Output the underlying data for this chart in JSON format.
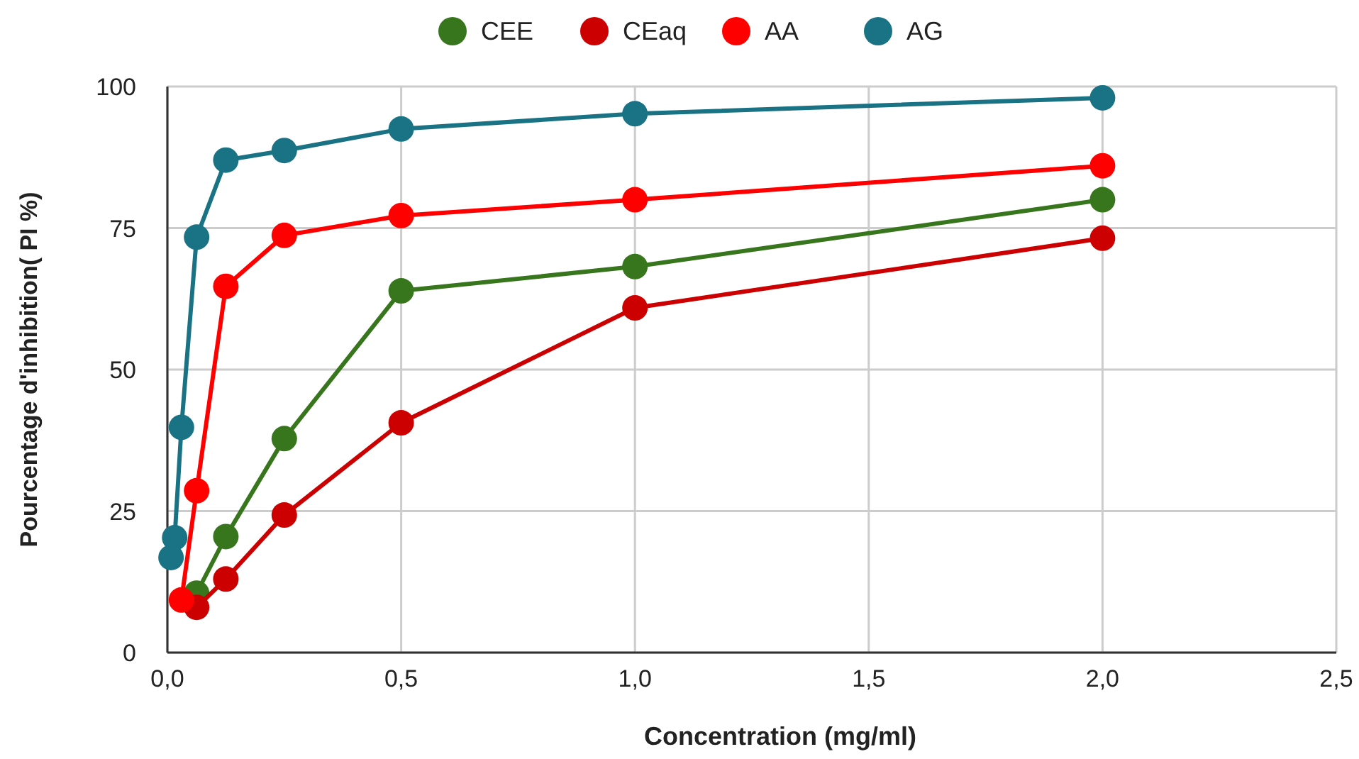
{
  "chart_data": {
    "type": "line",
    "xlabel": "Concentration (mg/ml)",
    "ylabel": "Pourcentage d'inhibition( PI %)",
    "xlim": [
      0,
      2.5
    ],
    "xticks": [
      {
        "value": 0,
        "label": "0,0"
      },
      {
        "value": 0.5,
        "label": "0,5"
      },
      {
        "value": 1,
        "label": "1,0"
      },
      {
        "value": 1.5,
        "label": "1,5"
      },
      {
        "value": 2,
        "label": "2,0"
      },
      {
        "value": 2.5,
        "label": "2,5"
      }
    ],
    "ylim": [
      0,
      100
    ],
    "yticks": [
      0,
      25,
      50,
      75,
      100
    ],
    "grid": true,
    "legend": "top",
    "marker": "circle",
    "line_style": "solid",
    "series": [
      {
        "name": "CEE",
        "color": "#38761d",
        "x": [
          0.0625,
          0.125,
          0.25,
          0.5,
          1,
          2
        ],
        "values": [
          10.5,
          20.5,
          37.8,
          63.9,
          68.2,
          80
        ]
      },
      {
        "name": "CEaq",
        "color": "#cc0000",
        "x": [
          0.0625,
          0.125,
          0.25,
          0.5,
          1,
          2
        ],
        "values": [
          8,
          13,
          24.3,
          40.6,
          60.9,
          73.2
        ]
      },
      {
        "name": "AA",
        "color": "#ff0000",
        "x": [
          0.03,
          0.0625,
          0.125,
          0.25,
          0.5,
          1,
          2
        ],
        "values": [
          9.3,
          28.6,
          64.7,
          73.7,
          77.2,
          80,
          86
        ]
      },
      {
        "name": "AG",
        "color": "#1a7384",
        "x": [
          0.0078,
          0.0156,
          0.03,
          0.0625,
          0.125,
          0.25,
          0.5,
          1,
          2
        ],
        "values": [
          16.8,
          20.3,
          39.8,
          73.4,
          87,
          88.7,
          92.5,
          95.2,
          98
        ]
      }
    ]
  }
}
